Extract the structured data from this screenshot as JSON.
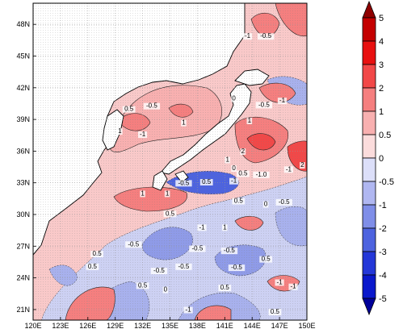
{
  "map": {
    "lon_ticks": [
      "120E",
      "123E",
      "126E",
      "129E",
      "132E",
      "135E",
      "138E",
      "141E",
      "144E",
      "147E",
      "150E"
    ],
    "lat_ticks": [
      "21N",
      "24N",
      "27N",
      "30N",
      "33N",
      "36N",
      "39N",
      "42N",
      "45N",
      "48N"
    ],
    "contour_labels": [
      {
        "lon": 143.5,
        "lat": 46.7,
        "text": "-1"
      },
      {
        "lon": 145.5,
        "lat": 46.7,
        "text": "-0.5"
      },
      {
        "lon": 130.5,
        "lat": 39.8,
        "text": "0.5"
      },
      {
        "lon": 133.0,
        "lat": 40.1,
        "text": "-0.5"
      },
      {
        "lon": 136.5,
        "lat": 38.5,
        "text": "1"
      },
      {
        "lon": 129.5,
        "lat": 37.7,
        "text": "1"
      },
      {
        "lon": 132.0,
        "lat": 37.4,
        "text": "-1"
      },
      {
        "lon": 142.0,
        "lat": 40.8,
        "text": "0"
      },
      {
        "lon": 145.3,
        "lat": 40.2,
        "text": "-0.5"
      },
      {
        "lon": 147.3,
        "lat": 40.6,
        "text": "-1"
      },
      {
        "lon": 143.7,
        "lat": 38.7,
        "text": "1"
      },
      {
        "lon": 143.0,
        "lat": 35.8,
        "text": "2"
      },
      {
        "lon": 141.3,
        "lat": 35.0,
        "text": "1"
      },
      {
        "lon": 142.0,
        "lat": 34.2,
        "text": "0"
      },
      {
        "lon": 143.0,
        "lat": 33.7,
        "text": "0.5"
      },
      {
        "lon": 145.0,
        "lat": 33.6,
        "text": "-1.0"
      },
      {
        "lon": 148.0,
        "lat": 34.1,
        "text": "-1"
      },
      {
        "lon": 149.5,
        "lat": 34.5,
        "text": "2"
      },
      {
        "lon": 136.5,
        "lat": 32.8,
        "text": "-0.5"
      },
      {
        "lon": 139.0,
        "lat": 32.9,
        "text": "0.5"
      },
      {
        "lon": 142.0,
        "lat": 33.0,
        "text": "-1"
      },
      {
        "lon": 132.0,
        "lat": 31.8,
        "text": "1"
      },
      {
        "lon": 134.7,
        "lat": 31.8,
        "text": "1"
      },
      {
        "lon": 142.5,
        "lat": 31.1,
        "text": "0.5"
      },
      {
        "lon": 145.5,
        "lat": 30.8,
        "text": "0"
      },
      {
        "lon": 147.5,
        "lat": 31.0,
        "text": "-0.5"
      },
      {
        "lon": 135.0,
        "lat": 29.9,
        "text": "0.5"
      },
      {
        "lon": 138.5,
        "lat": 28.6,
        "text": "-1"
      },
      {
        "lon": 141.0,
        "lat": 28.6,
        "text": "1"
      },
      {
        "lon": 131.0,
        "lat": 27.0,
        "text": "-0.5"
      },
      {
        "lon": 127.0,
        "lat": 26.1,
        "text": "0.5"
      },
      {
        "lon": 138.0,
        "lat": 26.6,
        "text": "-0.5"
      },
      {
        "lon": 141.5,
        "lat": 26.4,
        "text": "-0.5"
      },
      {
        "lon": 145.5,
        "lat": 25.6,
        "text": "0.5"
      },
      {
        "lon": 126.5,
        "lat": 24.9,
        "text": "0.5"
      },
      {
        "lon": 133.8,
        "lat": 24.5,
        "text": "-0.5"
      },
      {
        "lon": 136.5,
        "lat": 24.9,
        "text": "-0.5"
      },
      {
        "lon": 142.3,
        "lat": 24.8,
        "text": "-0.5"
      },
      {
        "lon": 132.0,
        "lat": 23.1,
        "text": "0.5"
      },
      {
        "lon": 134.5,
        "lat": 22.7,
        "text": "0"
      },
      {
        "lon": 141.0,
        "lat": 22.9,
        "text": "0.5"
      },
      {
        "lon": 147.0,
        "lat": 23.4,
        "text": "-1"
      },
      {
        "lon": 148.5,
        "lat": 23.0,
        "text": "-1"
      },
      {
        "lon": 137.0,
        "lat": 20.8,
        "text": "-1"
      },
      {
        "lon": 146.5,
        "lat": 20.6,
        "text": "0.5"
      }
    ]
  },
  "colorbar": {
    "labels": [
      "5",
      "4",
      "3",
      "2",
      "1",
      "0.5",
      "0",
      "-0.5",
      "-1",
      "-2",
      "-3",
      "-4",
      "-5"
    ],
    "colors": [
      "#8f0000",
      "#c40000",
      "#e81010",
      "#f24848",
      "#f57f7f",
      "#f8b0b0",
      "#fbdcdc",
      "#dcdff9",
      "#b0b7f1",
      "#7f8ee8",
      "#4d63df",
      "#2437d8",
      "#0a18cc",
      "#00009a"
    ]
  }
}
